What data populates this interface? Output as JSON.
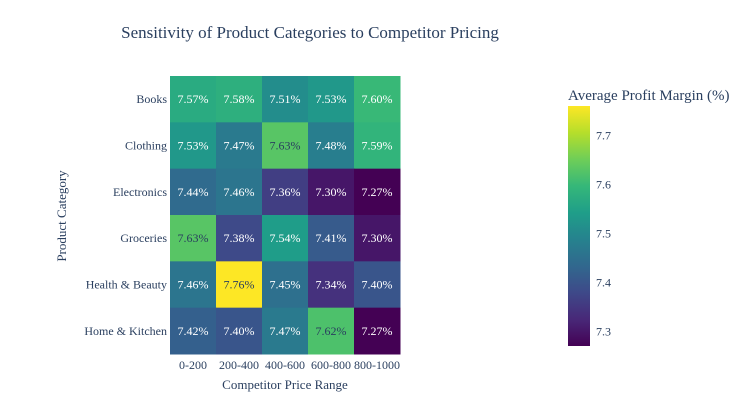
{
  "chart_data": {
    "type": "heatmap",
    "title": "Sensitivity of Product Categories to Competitor Pricing",
    "xlabel": "Competitor Price Range",
    "ylabel": "Product Category",
    "x_categories": [
      "0-200",
      "200-400",
      "400-600",
      "600-800",
      "800-1000"
    ],
    "y_categories": [
      "Books",
      "Clothing",
      "Electronics",
      "Groceries",
      "Health & Beauty",
      "Home & Kitchen"
    ],
    "values": [
      [
        7.57,
        7.58,
        7.51,
        7.53,
        7.6
      ],
      [
        7.53,
        7.47,
        7.63,
        7.48,
        7.59
      ],
      [
        7.44,
        7.46,
        7.36,
        7.3,
        7.27
      ],
      [
        7.63,
        7.38,
        7.54,
        7.41,
        7.3
      ],
      [
        7.46,
        7.76,
        7.45,
        7.34,
        7.4
      ],
      [
        7.42,
        7.4,
        7.47,
        7.62,
        7.27
      ]
    ],
    "value_suffix": "%",
    "colorscale": "Viridis",
    "zmin": 7.27,
    "zmax": 7.76,
    "colorbar": {
      "title": "Average Profit Margin (%)",
      "tickvals": [
        7.3,
        7.4,
        7.5,
        7.6,
        7.7
      ],
      "ticktext": [
        "7.3",
        "7.4",
        "7.5",
        "7.6",
        "7.7"
      ]
    }
  }
}
